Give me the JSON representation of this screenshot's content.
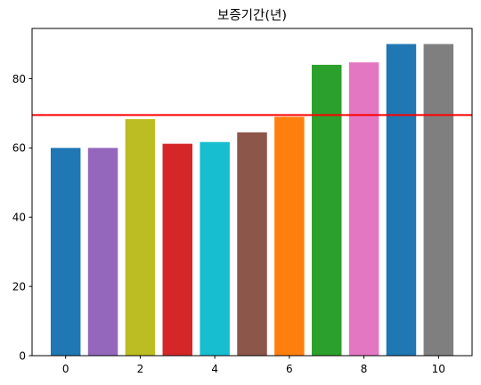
{
  "chart_data": {
    "type": "bar",
    "title": "보증기간(년)",
    "xlabel": "",
    "ylabel": "",
    "categories": [
      0,
      1,
      2,
      3,
      4,
      5,
      6,
      7,
      8,
      9,
      10
    ],
    "values": [
      60,
      60,
      68.3,
      61.2,
      61.7,
      64.5,
      69,
      84,
      84.7,
      90,
      90
    ],
    "bar_colors": [
      "#1f77b4",
      "#9467bd",
      "#bcbd22",
      "#d62728",
      "#17becf",
      "#8c564b",
      "#ff7f0e",
      "#2ca02c",
      "#e377c2",
      "#1f77b4",
      "#7f7f7f"
    ],
    "xlim": [
      -0.9,
      10.9
    ],
    "ylim": [
      0,
      94.5
    ],
    "xticks": [
      0,
      2,
      4,
      6,
      8,
      10
    ],
    "yticks": [
      0,
      20,
      40,
      60,
      80
    ],
    "reference_line": {
      "value": 69.5,
      "color": "#ff0000"
    },
    "grid": false,
    "legend": "none"
  }
}
